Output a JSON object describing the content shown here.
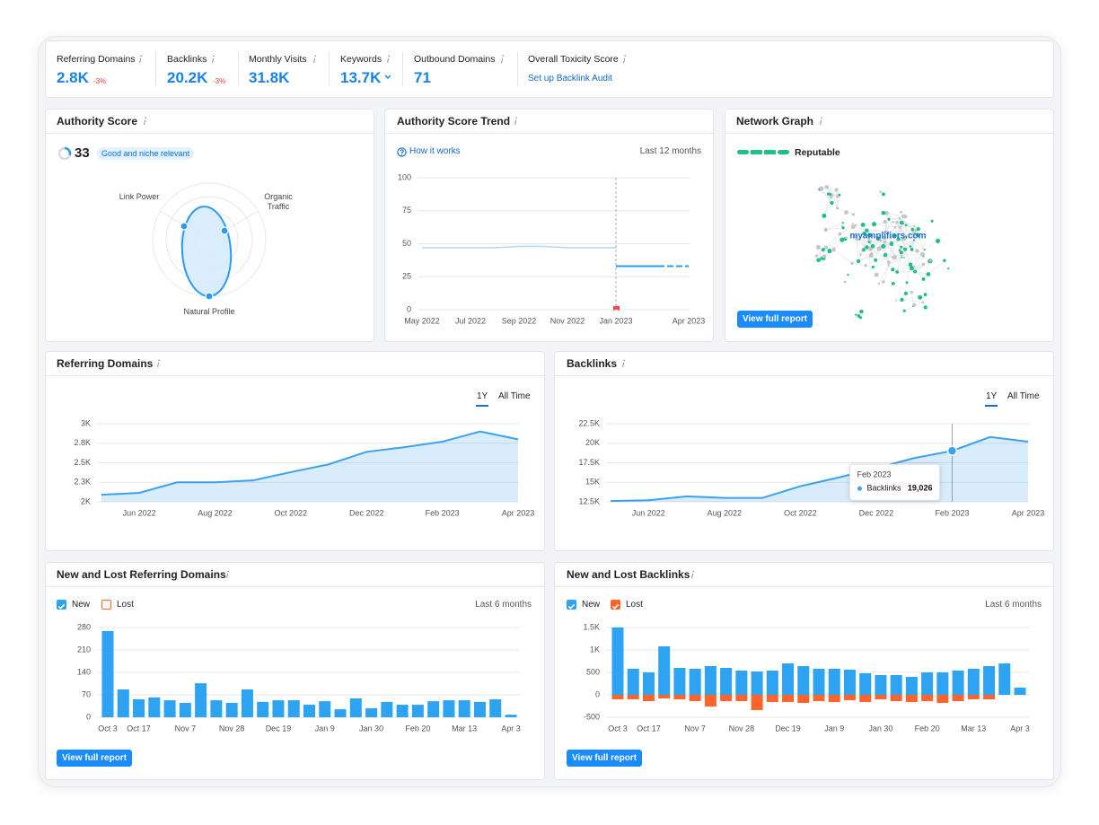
{
  "metrics": [
    {
      "label": "Referring Domains",
      "value": "2.8K",
      "change": "-3%"
    },
    {
      "label": "Backlinks",
      "value": "20.2K",
      "change": "-3%"
    },
    {
      "label": "Monthly Visits",
      "value": "31.8K"
    },
    {
      "label": "Keywords",
      "value": "13.7K"
    },
    {
      "label": "Outbound Domains",
      "value": "71"
    },
    {
      "label": "Overall Toxicity Score",
      "link": "Set up Backlink Audit"
    }
  ],
  "authority_score": {
    "title": "Authority Score",
    "score": 33,
    "badge": "Good and niche relevant",
    "axes": [
      "Link Power",
      "Organic Traffic",
      "Natural Profile"
    ]
  },
  "authority_trend": {
    "title": "Authority Score Trend",
    "link": "How it works",
    "period": "Last 12 months",
    "chart": {
      "type": "line",
      "categories": [
        "May 2022",
        null,
        "Jul 2022",
        null,
        "Sep 2022",
        null,
        "Nov 2022",
        null,
        "Jan 2023",
        null,
        null,
        "Apr 2023"
      ],
      "series": [
        {
          "color": "#b3dbf7",
          "values": [
            47,
            47,
            47,
            47,
            48,
            48,
            47,
            47,
            47,
            null,
            null,
            null
          ]
        },
        {
          "color": "#2b9af3",
          "values": [
            null,
            null,
            null,
            null,
            null,
            null,
            null,
            null,
            33,
            33,
            33,
            33
          ]
        }
      ],
      "ylim": [
        0,
        100
      ],
      "yticks": [
        0,
        25,
        50,
        75,
        100
      ],
      "grid": true
    }
  },
  "network_graph": {
    "title": "Network Graph",
    "status": "Reputable",
    "domain": "myamplifiers.com",
    "button": "View full report"
  },
  "referring_domains": {
    "title": "Referring Domains",
    "ranges": [
      "1Y",
      "All Time"
    ],
    "chart": {
      "type": "area",
      "categories": [
        null,
        "Jun 2022",
        null,
        "Aug 2022",
        null,
        "Oct 2022",
        null,
        "Dec 2022",
        null,
        "Feb 2023",
        null,
        "Apr 2023"
      ],
      "series": [
        {
          "color": "#3aa2f0",
          "values": [
            2090,
            2115,
            2250,
            2250,
            2275,
            2380,
            2480,
            2640,
            2700,
            2770,
            2900,
            2800
          ]
        }
      ],
      "ylim": [
        2000,
        3000
      ],
      "yticks": [
        {
          "value": 2000,
          "label": "2K"
        },
        {
          "value": 2250,
          "label": "2.3K"
        },
        {
          "value": 2500,
          "label": "2.5K"
        },
        {
          "value": 2750,
          "label": "2.8K"
        },
        {
          "value": 3000,
          "label": "3K"
        }
      ],
      "grid": true
    }
  },
  "backlinks": {
    "title": "Backlinks",
    "ranges": [
      "1Y",
      "All Time"
    ],
    "chart": {
      "type": "area",
      "categories": [
        null,
        "Jun 2022",
        null,
        "Aug 2022",
        null,
        "Oct 2022",
        null,
        "Dec 2022",
        null,
        "Feb 2023",
        null,
        "Apr 2023"
      ],
      "series": [
        {
          "name": "Backlinks",
          "color": "#3aa2f0",
          "values": [
            12600,
            12700,
            13200,
            13000,
            13000,
            14500,
            15600,
            16800,
            18100,
            19026,
            20800,
            20200
          ]
        }
      ],
      "ylim": [
        12500,
        22500
      ],
      "yticks": [
        {
          "value": 12500,
          "label": "12.5K"
        },
        {
          "value": 15000,
          "label": "15K"
        },
        {
          "value": 17500,
          "label": "17.5K"
        },
        {
          "value": 20000,
          "label": "20K"
        },
        {
          "value": 22500,
          "label": "22.5K"
        }
      ],
      "grid": true,
      "tooltip": {
        "title": "Feb 2023",
        "value_label": "19,026"
      }
    }
  },
  "new_lost_domains": {
    "title": "New and Lost Referring Domains",
    "period": "Last 6 months",
    "button": "View full report",
    "legend": [
      {
        "name": "New",
        "color": "#2ea3f2",
        "checked": true
      },
      {
        "name": "Lost",
        "color": "#ff642d",
        "checked": false
      }
    ],
    "chart": {
      "type": "bar",
      "categories": [
        "Oct 3",
        null,
        "Oct 17",
        null,
        null,
        "Nov 7",
        null,
        null,
        "Nov 28",
        null,
        null,
        "Dec 19",
        null,
        null,
        "Jan 9",
        null,
        null,
        "Jan 30",
        null,
        null,
        "Feb 20",
        null,
        null,
        "Mar 13",
        null,
        null,
        "Apr 3"
      ],
      "series": [
        {
          "name": "New",
          "color": "#2ea3f2",
          "values": [
            269,
            87,
            56,
            62,
            53,
            45,
            106,
            53,
            45,
            87,
            48,
            53,
            53,
            39,
            50,
            25,
            59,
            28,
            48,
            39,
            39,
            50,
            53,
            53,
            48,
            56,
            8
          ]
        }
      ],
      "ylim": [
        0,
        280
      ],
      "yticks": [
        0,
        70,
        140,
        210,
        280
      ],
      "grid": true
    }
  },
  "new_lost_backlinks": {
    "title": "New and Lost Backlinks",
    "period": "Last 6 months",
    "button": "View full report",
    "legend": [
      {
        "name": "New",
        "color": "#2ea3f2",
        "checked": true
      },
      {
        "name": "Lost",
        "color": "#ff642d",
        "checked": true
      }
    ],
    "chart": {
      "type": "bar",
      "categories": [
        "Oct 3",
        null,
        "Oct 17",
        null,
        null,
        "Nov 7",
        null,
        null,
        "Nov 28",
        null,
        null,
        "Dec 19",
        null,
        null,
        "Jan 9",
        null,
        null,
        "Jan 30",
        null,
        null,
        "Feb 20",
        null,
        null,
        "Mar 13",
        null,
        null,
        "Apr 3"
      ],
      "series": [
        {
          "name": "New",
          "color": "#2ea3f2",
          "values": [
            1500,
            580,
            500,
            1080,
            600,
            580,
            640,
            600,
            540,
            520,
            540,
            700,
            640,
            580,
            580,
            560,
            480,
            440,
            440,
            400,
            500,
            500,
            540,
            580,
            640,
            700,
            160
          ]
        },
        {
          "name": "Lost",
          "color": "#ff642d",
          "values": [
            -100,
            -100,
            -140,
            -80,
            -100,
            -140,
            -260,
            -140,
            -140,
            -340,
            -160,
            -160,
            -180,
            -140,
            -160,
            -120,
            -160,
            -100,
            -140,
            -160,
            -140,
            -180,
            -140,
            -100,
            -100,
            0,
            0
          ]
        }
      ],
      "ylim": [
        -500,
        1500
      ],
      "yticks": [
        -500,
        0,
        500,
        {
          "value": 1000,
          "label": "1K"
        },
        {
          "value": 1500,
          "label": "1.5K"
        }
      ],
      "grid": true
    }
  }
}
